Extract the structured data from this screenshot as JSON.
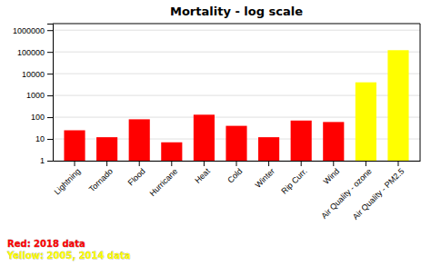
{
  "chart_data": {
    "type": "bar",
    "title": "Mortality - log scale",
    "categories": [
      "Lightning",
      "Tornado",
      "Flood",
      "Hurricane",
      "Heat",
      "Cold",
      "Winter",
      "Rip Curr.",
      "Wind",
      "Air Quality - ozone",
      "Air Quality - PM2.5"
    ],
    "values": [
      25,
      12,
      80,
      7,
      130,
      40,
      12,
      70,
      60,
      4000,
      120000
    ],
    "colors": [
      "red",
      "red",
      "red",
      "red",
      "red",
      "red",
      "red",
      "red",
      "red",
      "yellow",
      "yellow"
    ],
    "log": "y",
    "ylim": [
      1,
      2000000
    ],
    "yticks": [
      1,
      10,
      100,
      1000,
      10000,
      100000,
      1000000
    ],
    "grid": true,
    "annotations": [
      {
        "text": "Red: 2018 data",
        "color": "red"
      },
      {
        "text": "Yellow: 2005, 2014 data",
        "color": "yellow"
      }
    ]
  }
}
